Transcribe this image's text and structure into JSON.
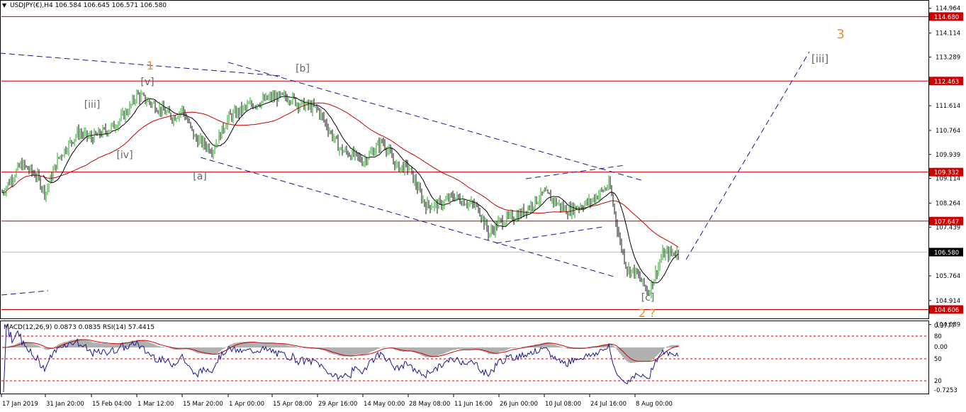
{
  "header": {
    "symbol_line": "USDJPY(€),H4  106.584 106.645 106.571 106.580"
  },
  "subwindow": {
    "indicators_line": "MACD(12,26,9) 0.0873 0.0835  RSI(14) 57.4415"
  },
  "colors": {
    "bull_candle": "#22aa22",
    "bear_candle": "#111111",
    "sr_line": "#cc0000",
    "price_tag": "#cc0000",
    "channel": "#1a1a8c",
    "ma_slow": "#cc0000",
    "ma_fast": "#000000",
    "wave_primary": "#e8912e",
    "wave_minor": "#666666",
    "macd_hist": "#b0b0b0",
    "rsi_line": "#1a1a8c"
  },
  "chart_data": [
    {
      "type": "line",
      "title": "USDJPY(€),H4",
      "ylim": [
        104.3,
        115.25
      ],
      "y_ticks": [
        "114.964",
        "114.114",
        "113.289",
        "112.439",
        "111.614",
        "110.764",
        "109.939",
        "109.114",
        "108.264",
        "107.439",
        "105.764",
        "104.914",
        "104.089"
      ],
      "x_ticks": [
        "17 Jan 2019",
        "31 Jan 20:00",
        "15 Feb 04:00",
        "1 Mar 12:00",
        "15 Mar 20:00",
        "1 Apr 00:00",
        "15 Apr 08:00",
        "29 Apr 16:00",
        "14 May 00:00",
        "28 May 08:00",
        "11 Jun 16:00",
        "26 Jun 00:00",
        "10 Jul 08:00",
        "24 Jul 16:00",
        "8 Aug 00:00"
      ],
      "horizontal_levels": [
        {
          "value": 114.68,
          "label": "114.680"
        },
        {
          "value": 112.463,
          "label": "112.463"
        },
        {
          "value": 109.332,
          "label": "109.332"
        },
        {
          "value": 107.647,
          "label": "107.647"
        },
        {
          "value": 104.606,
          "label": "104.606"
        }
      ],
      "current_price": {
        "value": 106.58,
        "label": "106.580"
      },
      "price_path": [
        [
          "17 Jan 2019",
          108.6
        ],
        [
          "23 Jan",
          109.6
        ],
        [
          "29 Jan",
          109.2
        ],
        [
          "31 Jan 20:00",
          108.6
        ],
        [
          "6 Feb",
          109.8
        ],
        [
          "12 Feb",
          110.7
        ],
        [
          "15 Feb 04:00",
          110.5
        ],
        [
          "22 Feb",
          110.9
        ],
        [
          "28 Feb",
          111.5
        ],
        [
          "1 Mar 12:00",
          112.0
        ],
        [
          "7 Mar",
          111.6
        ],
        [
          "12 Mar",
          111.2
        ],
        [
          "15 Mar 20:00",
          111.5
        ],
        [
          "19 Mar",
          110.5
        ],
        [
          "25 Mar",
          110.1
        ],
        [
          "1 Apr 00:00",
          111.2
        ],
        [
          "8 Apr",
          111.6
        ],
        [
          "15 Apr 08:00",
          111.9
        ],
        [
          "22 Apr",
          111.9
        ],
        [
          "25 Apr",
          111.7
        ],
        [
          "29 Apr 16:00",
          111.5
        ],
        [
          "5 May",
          110.1
        ],
        [
          "10 May",
          109.9
        ],
        [
          "14 May 00:00",
          109.7
        ],
        [
          "21 May",
          110.4
        ],
        [
          "24 May",
          109.5
        ],
        [
          "28 May 08:00",
          109.5
        ],
        [
          "3 Jun",
          108.2
        ],
        [
          "7 Jun",
          108.2
        ],
        [
          "11 Jun 16:00",
          108.5
        ],
        [
          "18 Jun",
          108.1
        ],
        [
          "25 Jun",
          107.2
        ],
        [
          "26 Jun 00:00",
          107.6
        ],
        [
          "3 Jul",
          107.9
        ],
        [
          "10 Jul 08:00",
          108.6
        ],
        [
          "17 Jul",
          108.0
        ],
        [
          "24 Jul 16:00",
          108.3
        ],
        [
          "30 Jul",
          108.9
        ],
        [
          "2 Aug",
          107.0
        ],
        [
          "5 Aug",
          106.0
        ],
        [
          "8 Aug 00:00",
          105.9
        ],
        [
          "12 Aug",
          105.2
        ],
        [
          "14 Aug",
          106.5
        ],
        [
          "17 Aug",
          106.58
        ]
      ],
      "wave_labels": [
        {
          "text": "1",
          "at": "1 Mar 12:00",
          "role": "primary"
        },
        {
          "text": "[v]",
          "at": "1 Mar 12:00",
          "role": "minor"
        },
        {
          "text": "[iii]",
          "at": "15 Feb 04:00",
          "role": "minor"
        },
        {
          "text": "[iv]",
          "at": "15 Feb 04:00",
          "role": "minor"
        },
        {
          "text": "[a]",
          "at": "15 Mar 20:00",
          "role": "minor"
        },
        {
          "text": "[b]",
          "at": "15 Apr 08:00",
          "role": "minor"
        },
        {
          "text": "[c]",
          "at": "8 Aug 00:00",
          "role": "minor"
        },
        {
          "text": "2 ?",
          "at": "8 Aug 00:00",
          "role": "primary"
        },
        {
          "text": "3",
          "at": "projection",
          "role": "primary"
        },
        {
          "text": "[iii]",
          "at": "projection",
          "role": "minor"
        }
      ]
    },
    {
      "type": "line",
      "title": "MACD(12,26,9) / RSI(14)",
      "macd": {
        "main": 0.0873,
        "signal": 0.0835,
        "ticks": [
          "0.3777",
          "0.00",
          "-0.7253"
        ]
      },
      "rsi": {
        "value": 57.4415,
        "ticks": [
          "80",
          "50",
          "20"
        ]
      }
    }
  ]
}
